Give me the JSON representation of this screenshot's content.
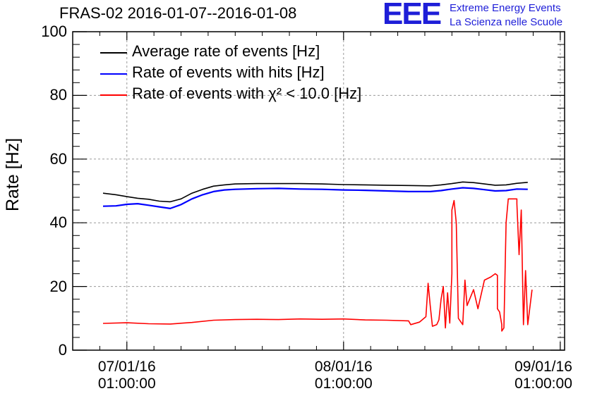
{
  "chart_data": {
    "type": "line",
    "title": "FRAS-02 2016-01-07--2016-01-08",
    "xlabel": "",
    "ylabel": "Rate [Hz]",
    "ylim": [
      0,
      100
    ],
    "xlim": [
      -0.25,
      2.02
    ],
    "x_unit": "days since 07/01/16 01:00:00",
    "grid": true,
    "legend_position": "top-left",
    "yticks": [
      "0",
      "20",
      "40",
      "60",
      "80",
      "100"
    ],
    "xticks": [
      {
        "value": 0,
        "date": "07/01/16",
        "time": "01:00:00"
      },
      {
        "value": 1,
        "date": "08/01/16",
        "time": "01:00:00"
      },
      {
        "value": 2,
        "date": "09/01/16",
        "time": "01:00:00"
      }
    ],
    "series": [
      {
        "name": "Average rate of events [Hz]",
        "color": "#000000",
        "x": [
          -0.11,
          -0.05,
          0.0,
          0.05,
          0.1,
          0.15,
          0.2,
          0.25,
          0.3,
          0.35,
          0.4,
          0.45,
          0.5,
          0.6,
          0.7,
          0.8,
          0.9,
          1.0,
          1.1,
          1.2,
          1.3,
          1.4,
          1.45,
          1.5,
          1.55,
          1.6,
          1.65,
          1.7,
          1.75,
          1.8,
          1.85
        ],
        "y": [
          49.3,
          48.8,
          48.2,
          47.7,
          47.4,
          46.8,
          46.6,
          47.5,
          49.3,
          50.5,
          51.5,
          51.9,
          52.2,
          52.3,
          52.3,
          52.3,
          52.2,
          52.0,
          51.9,
          51.8,
          51.7,
          51.6,
          51.9,
          52.3,
          52.8,
          52.6,
          52.2,
          51.8,
          51.9,
          52.4,
          52.7
        ]
      },
      {
        "name": "Rate of events with hits [Hz]",
        "color": "#0000ff",
        "x": [
          -0.11,
          -0.05,
          0.0,
          0.05,
          0.1,
          0.15,
          0.2,
          0.25,
          0.3,
          0.35,
          0.4,
          0.45,
          0.5,
          0.6,
          0.7,
          0.8,
          0.9,
          1.0,
          1.1,
          1.2,
          1.3,
          1.4,
          1.45,
          1.5,
          1.55,
          1.6,
          1.65,
          1.7,
          1.75,
          1.8,
          1.85
        ],
        "y": [
          45.2,
          45.3,
          45.8,
          46.0,
          45.5,
          45.0,
          44.5,
          45.7,
          47.5,
          48.8,
          49.8,
          50.3,
          50.5,
          50.7,
          50.8,
          50.6,
          50.5,
          50.3,
          50.2,
          50.0,
          49.8,
          49.8,
          50.1,
          50.6,
          51.0,
          50.8,
          50.4,
          50.0,
          50.1,
          50.6,
          50.5
        ]
      },
      {
        "name": "Rate of events with χ² < 10.0 [Hz]",
        "color": "#ff0000",
        "x": [
          -0.11,
          0.0,
          0.1,
          0.2,
          0.3,
          0.4,
          0.5,
          0.6,
          0.7,
          0.8,
          0.9,
          1.0,
          1.1,
          1.2,
          1.3,
          1.31,
          1.35,
          1.38,
          1.39,
          1.4,
          1.41,
          1.43,
          1.44,
          1.45,
          1.46,
          1.47,
          1.48,
          1.49,
          1.5,
          1.5,
          1.51,
          1.52,
          1.53,
          1.54,
          1.55,
          1.56,
          1.57,
          1.6,
          1.62,
          1.65,
          1.68,
          1.7,
          1.71,
          1.71,
          1.72,
          1.73,
          1.73,
          1.74,
          1.75,
          1.76,
          1.8,
          1.8,
          1.81,
          1.82,
          1.83,
          1.84,
          1.85,
          1.87
        ],
        "y": [
          8.4,
          8.6,
          8.3,
          8.2,
          8.7,
          9.4,
          9.6,
          9.7,
          9.6,
          9.8,
          9.7,
          9.8,
          9.5,
          9.4,
          9.2,
          8.0,
          8.8,
          10.5,
          21.0,
          14.0,
          7.5,
          8.0,
          9.5,
          16.0,
          20.0,
          7.0,
          18.0,
          8.5,
          24.0,
          44.0,
          47.0,
          40.0,
          10.0,
          9.0,
          8.0,
          22.0,
          14.0,
          19.0,
          13.0,
          22.0,
          23.0,
          24.0,
          23.5,
          13.0,
          12.0,
          8.0,
          6.0,
          7.0,
          40.0,
          47.5,
          47.5,
          46.0,
          30.0,
          44.0,
          8.0,
          25.0,
          8.0,
          19.0
        ]
      }
    ]
  },
  "logo": {
    "mark": "EEE",
    "line1": "Extreme Energy Events",
    "line2": "La Scienza nelle Scuole"
  }
}
